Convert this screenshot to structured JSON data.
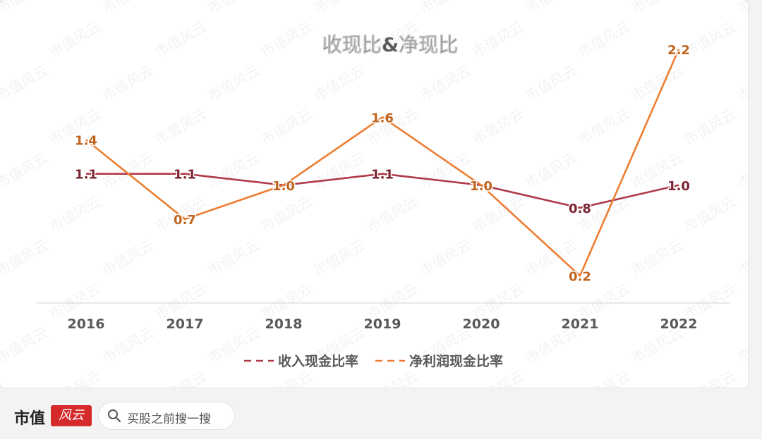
{
  "chart_data": {
    "type": "line",
    "title": "收现比&净现比",
    "categories": [
      "2016",
      "2017",
      "2018",
      "2019",
      "2020",
      "2021",
      "2022"
    ],
    "series": [
      {
        "name": "收入现金比率",
        "values": [
          1.1,
          1.1,
          1.0,
          1.1,
          1.0,
          0.8,
          1.0
        ],
        "labels": [
          "1.1",
          "1.1",
          "1.0",
          "1.1",
          "1.0",
          "0.8",
          "1.0"
        ],
        "color": "#b03a48"
      },
      {
        "name": "净利润现金比率",
        "values": [
          1.4,
          0.7,
          1.0,
          1.6,
          1.0,
          0.2,
          2.2
        ],
        "labels": [
          "1.4",
          "0.7",
          "1.0",
          "1.6",
          "1.0",
          "0.2",
          "2.2"
        ],
        "color": "#ed7d31"
      }
    ],
    "ylim": [
      -0.04,
      2.51
    ],
    "grid": false,
    "legend_position": "bottom"
  },
  "watermark": "市值风云",
  "footer": {
    "brand": "市值",
    "badge": "风云",
    "search_text": "买股之前搜一搜",
    "search_icon": "search-icon"
  }
}
